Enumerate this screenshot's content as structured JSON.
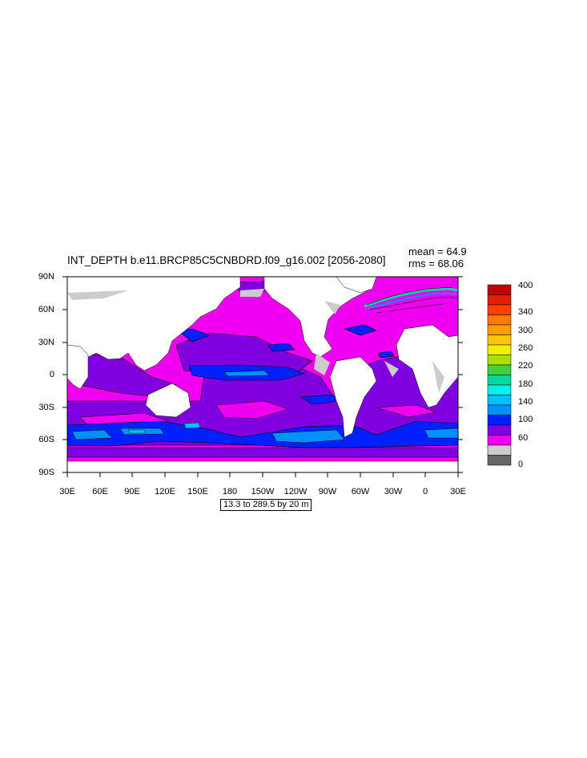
{
  "title": "INT_DEPTH b.e11.BRCP85C5CNBDRD.f09_g16.002 [2056-2080]",
  "stats": {
    "mean": "mean = 64.9",
    "rms": "rms = 68.06"
  },
  "lat_labels": [
    "90N",
    "60N",
    "30N",
    "0",
    "30S",
    "60S",
    "90S"
  ],
  "lon_labels": [
    "30E",
    "60E",
    "90E",
    "120E",
    "150E",
    "180",
    "150W",
    "120W",
    "90W",
    "60W",
    "30W",
    "0",
    "30E"
  ],
  "info": "13.3 to 289.5 by 20 m",
  "colorbar": {
    "labels": [
      "400",
      "340",
      "300",
      "260",
      "220",
      "180",
      "140",
      "100",
      "60",
      "0"
    ],
    "colors": [
      "#c40000",
      "#e02000",
      "#ff4000",
      "#ff7a00",
      "#ffa000",
      "#ffc800",
      "#f0f000",
      "#a8e000",
      "#40d040",
      "#00d8a0",
      "#00f0f0",
      "#00c0ff",
      "#0090ff",
      "#0020ff",
      "#8000e0",
      "#f000f0",
      "#cccccc",
      "#666666"
    ]
  },
  "colors": {
    "land": "#ffffff",
    "ice": "#cccccc"
  }
}
